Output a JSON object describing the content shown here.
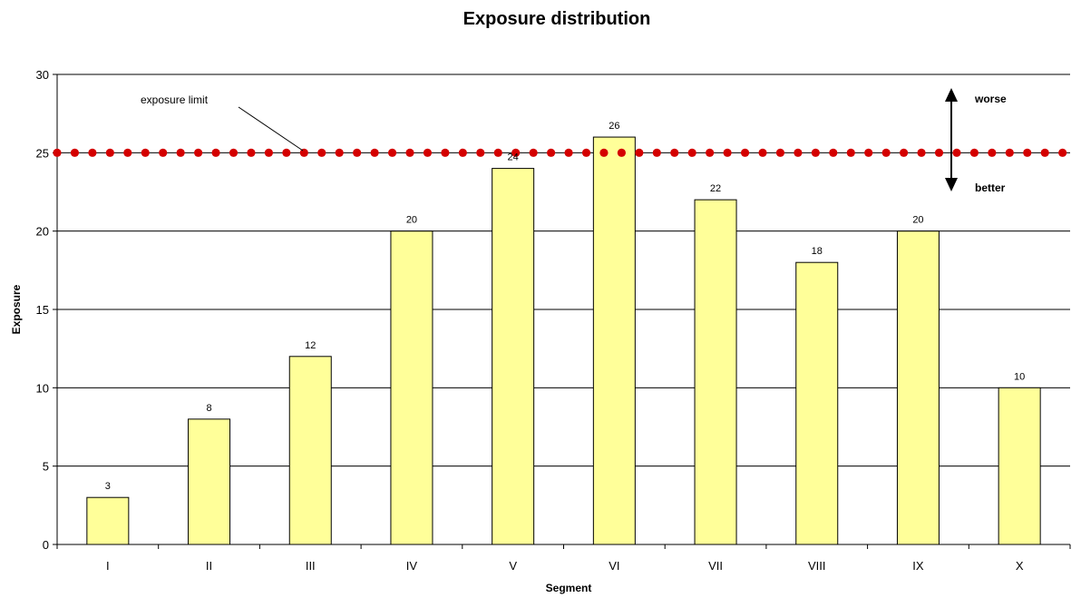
{
  "chart_data": {
    "type": "bar",
    "title": "Exposure distribution",
    "xlabel": "Segment",
    "ylabel": "Exposure",
    "categories": [
      "I",
      "II",
      "III",
      "IV",
      "V",
      "VI",
      "VII",
      "VIII",
      "IX",
      "X"
    ],
    "values": [
      3,
      8,
      12,
      20,
      24,
      26,
      22,
      18,
      20,
      10
    ],
    "ylim": [
      0,
      30
    ],
    "yticks": [
      "0",
      "5",
      "10",
      "15",
      "20",
      "25",
      "30"
    ],
    "grid": true,
    "legend": "none",
    "reference_line": {
      "value": 25,
      "label": "exposure limit",
      "color": "#d40000",
      "style": "dotted"
    },
    "annotations": {
      "up_label": "worse",
      "down_label": "better"
    },
    "colors": {
      "bar_fill": "#ffff99",
      "bar_stroke": "#000000",
      "grid": "#000000"
    }
  }
}
